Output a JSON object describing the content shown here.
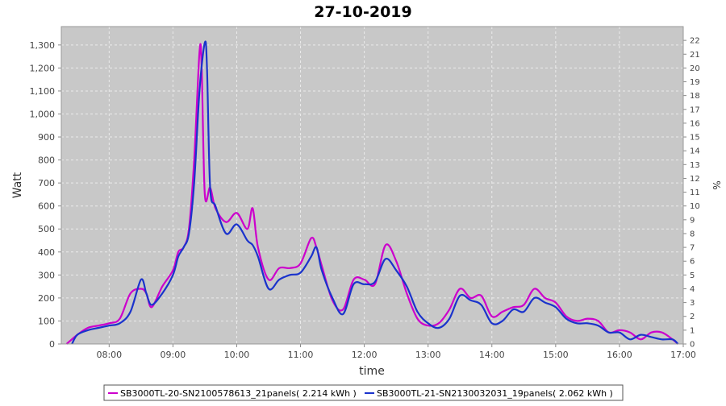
{
  "chart_data": {
    "type": "line",
    "title": "27-10-2019",
    "xlabel": "time",
    "ylabel": "Watt",
    "y2label": "%",
    "xlim": [
      "07:15",
      "17:00"
    ],
    "ylim": [
      0,
      1380
    ],
    "y2lim": [
      0,
      23
    ],
    "grid": true,
    "legend_position": "bottom",
    "x_ticks": [
      "08:00",
      "09:00",
      "10:00",
      "11:00",
      "12:00",
      "13:00",
      "14:00",
      "15:00",
      "16:00",
      "17:00"
    ],
    "y_ticks": [
      "0",
      "100",
      "200",
      "300",
      "400",
      "500",
      "600",
      "700",
      "800",
      "900",
      "1,000",
      "1,100",
      "1,200",
      "1,300"
    ],
    "y2_ticks": [
      "0",
      "1",
      "2",
      "3",
      "4",
      "5",
      "6",
      "7",
      "8",
      "9",
      "10",
      "11",
      "12",
      "13",
      "14",
      "15",
      "16",
      "17",
      "18",
      "19",
      "20",
      "21",
      "22"
    ],
    "colors": {
      "plot_bg": "#c8c8c8",
      "grid": "#ebebeb",
      "series_1": "#cc00cc",
      "series_2": "#1a33cc"
    },
    "series": [
      {
        "name": "SB3000TL-20-SN2100578613_21panels( 2.214 kWh )",
        "x": [
          "07:20",
          "07:30",
          "07:40",
          "07:50",
          "08:00",
          "08:10",
          "08:20",
          "08:30",
          "08:35",
          "08:40",
          "08:50",
          "09:00",
          "09:05",
          "09:10",
          "09:15",
          "09:20",
          "09:25",
          "09:27",
          "09:30",
          "09:35",
          "09:40",
          "09:50",
          "10:00",
          "10:10",
          "10:15",
          "10:20",
          "10:30",
          "10:40",
          "10:50",
          "11:00",
          "11:10",
          "11:15",
          "11:20",
          "11:30",
          "11:40",
          "11:50",
          "12:00",
          "12:10",
          "12:20",
          "12:30",
          "12:40",
          "12:50",
          "13:00",
          "13:10",
          "13:20",
          "13:30",
          "13:40",
          "13:50",
          "14:00",
          "14:10",
          "14:20",
          "14:30",
          "14:40",
          "14:50",
          "15:00",
          "15:10",
          "15:20",
          "15:30",
          "15:40",
          "15:50",
          "16:00",
          "16:10",
          "16:20",
          "16:30",
          "16:40",
          "16:50",
          "16:55"
        ],
        "values": [
          0,
          40,
          70,
          80,
          90,
          110,
          220,
          240,
          220,
          160,
          250,
          320,
          400,
          420,
          500,
          800,
          1270,
          1200,
          650,
          680,
          590,
          530,
          570,
          500,
          590,
          420,
          280,
          330,
          330,
          350,
          460,
          420,
          340,
          190,
          150,
          280,
          280,
          260,
          430,
          360,
          220,
          110,
          80,
          90,
          150,
          240,
          200,
          210,
          120,
          140,
          160,
          170,
          240,
          200,
          180,
          120,
          100,
          110,
          100,
          50,
          60,
          50,
          20,
          50,
          50,
          20,
          0
        ]
      },
      {
        "name": "SB3000TL-21-SN2130032031_19panels( 2.062 kWh )",
        "x": [
          "07:25",
          "07:30",
          "07:40",
          "07:50",
          "08:00",
          "08:10",
          "08:20",
          "08:30",
          "08:35",
          "08:40",
          "08:50",
          "09:00",
          "09:05",
          "09:10",
          "09:15",
          "09:20",
          "09:25",
          "09:30",
          "09:32",
          "09:35",
          "09:40",
          "09:50",
          "10:00",
          "10:10",
          "10:15",
          "10:20",
          "10:30",
          "10:40",
          "10:50",
          "11:00",
          "11:10",
          "11:15",
          "11:20",
          "11:30",
          "11:40",
          "11:50",
          "12:00",
          "12:10",
          "12:20",
          "12:30",
          "12:40",
          "12:50",
          "13:00",
          "13:10",
          "13:20",
          "13:30",
          "13:40",
          "13:50",
          "14:00",
          "14:10",
          "14:20",
          "14:30",
          "14:40",
          "14:50",
          "15:00",
          "15:10",
          "15:20",
          "15:30",
          "15:40",
          "15:50",
          "16:00",
          "16:10",
          "16:20",
          "16:30",
          "16:40",
          "16:50",
          "16:55"
        ],
        "values": [
          0,
          40,
          60,
          70,
          80,
          90,
          140,
          280,
          220,
          170,
          220,
          300,
          380,
          420,
          480,
          700,
          1100,
          1310,
          1200,
          680,
          600,
          480,
          520,
          450,
          430,
          380,
          240,
          280,
          300,
          310,
          380,
          420,
          320,
          200,
          130,
          260,
          260,
          270,
          370,
          320,
          250,
          140,
          90,
          70,
          110,
          210,
          190,
          170,
          90,
          100,
          150,
          140,
          200,
          180,
          160,
          110,
          90,
          90,
          80,
          50,
          50,
          20,
          40,
          30,
          20,
          20,
          0
        ]
      }
    ]
  }
}
